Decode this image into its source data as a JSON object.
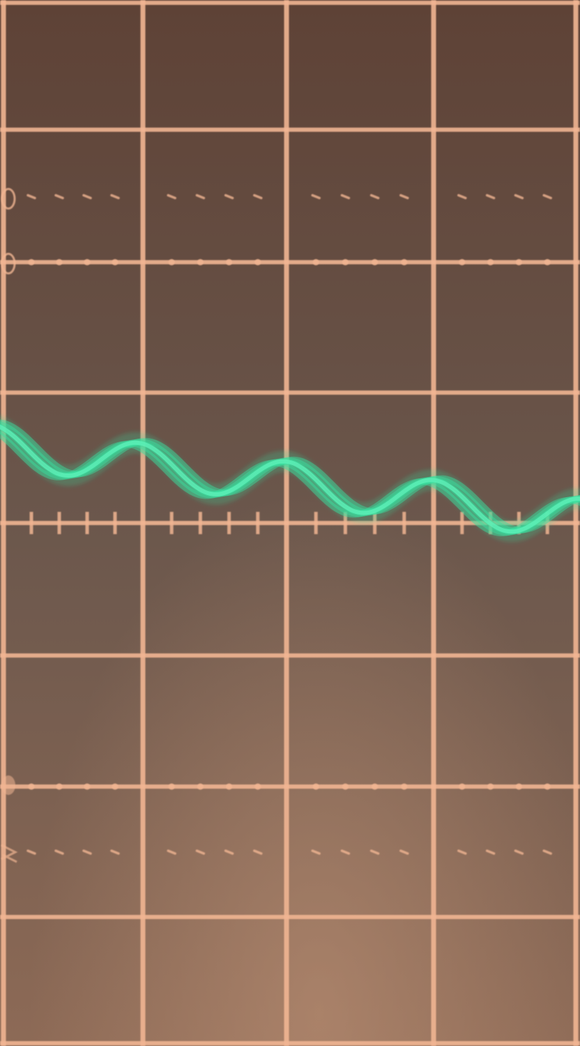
{
  "scene": {
    "description_kind": "oscilloscope-screen-photo",
    "colors": {
      "screen_top": "#5e4236",
      "screen_mid": "#6b574c",
      "screen_bottom": "#8d6a56",
      "graticule": "#f1b592",
      "trace": "#39e0a0",
      "trace_glow": "#2bd69a"
    },
    "graticule": {
      "vertical_divisions": 4,
      "horizontal_divisions": 8
    },
    "trace": {
      "shape": "sine-wave-with-downward-drift",
      "cycles_visible": 4,
      "persistence_copies": 5
    }
  }
}
